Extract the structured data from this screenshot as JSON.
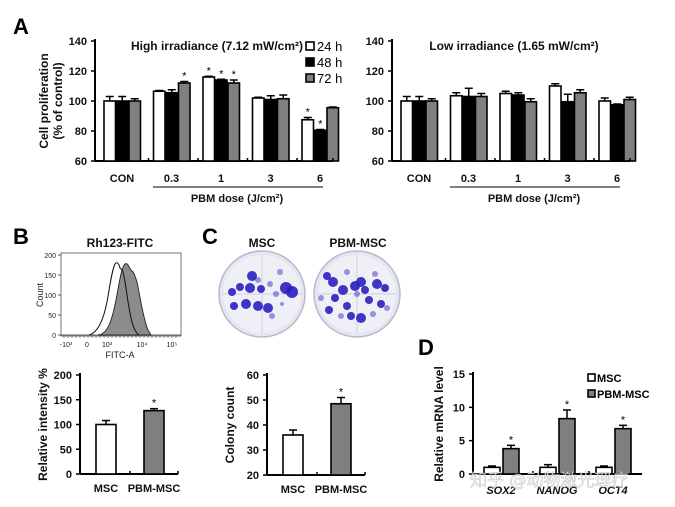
{
  "panels": {
    "A": "A",
    "B": "B",
    "C": "C",
    "D": "D"
  },
  "colors": {
    "h24": "#ffffff",
    "h48": "#000000",
    "h72": "#808080",
    "msc": "#ffffff",
    "pbm": "#7f7f7f",
    "axis": "#000000"
  },
  "watermark": "知乎 @动物激光理疗",
  "chart_data": [
    {
      "id": "A-high",
      "type": "bar",
      "title": "High irradiance (7.12 mW/cm²)",
      "ylabel": "Cell proliferation (% of control)",
      "xlabel": "PBM dose (J/cm²)",
      "ylim": [
        60,
        140
      ],
      "yticks": [
        60,
        80,
        100,
        120,
        140
      ],
      "categories": [
        "CON",
        "0.3",
        "1",
        "3",
        "6"
      ],
      "legend": [
        "24 h",
        "48 h",
        "72 h"
      ],
      "legend_position": "top-right",
      "series": [
        {
          "name": "24 h",
          "values": [
            100,
            106.5,
            116,
            102,
            87.5
          ],
          "errors": [
            3,
            0.5,
            0.5,
            0.5,
            1.5
          ],
          "sig": [
            false,
            false,
            true,
            false,
            true
          ]
        },
        {
          "name": "48 h",
          "values": [
            100,
            105.5,
            114,
            101,
            80.5
          ],
          "errors": [
            3,
            2,
            0.5,
            2.5,
            0.5
          ],
          "sig": [
            false,
            false,
            true,
            false,
            true
          ]
        },
        {
          "name": "72 h",
          "values": [
            100,
            112,
            112,
            101.5,
            95.5
          ],
          "errors": [
            1.5,
            1,
            2,
            2.5,
            0.5
          ],
          "sig": [
            false,
            true,
            true,
            false,
            false
          ]
        }
      ]
    },
    {
      "id": "A-low",
      "type": "bar",
      "title": "Low irradiance (1.65 mW/cm²)",
      "ylabel": "",
      "xlabel": "PBM dose (J/cm²)",
      "ylim": [
        60,
        140
      ],
      "yticks": [
        60,
        80,
        100,
        120,
        140
      ],
      "categories": [
        "CON",
        "0.3",
        "1",
        "3",
        "6"
      ],
      "series": [
        {
          "name": "24 h",
          "values": [
            100,
            103.5,
            105,
            110,
            100
          ],
          "errors": [
            3,
            2,
            1.5,
            1.5,
            2
          ],
          "sig": [
            false,
            false,
            false,
            false,
            false
          ]
        },
        {
          "name": "48 h",
          "values": [
            100,
            103,
            104,
            99.5,
            97.5
          ],
          "errors": [
            3,
            5.5,
            1.5,
            5,
            0.5
          ],
          "sig": [
            false,
            false,
            false,
            false,
            false
          ]
        },
        {
          "name": "72 h",
          "values": [
            100,
            103,
            99.5,
            105.5,
            101
          ],
          "errors": [
            1.5,
            2,
            2,
            2,
            1.5
          ],
          "sig": [
            false,
            false,
            false,
            false,
            false
          ]
        }
      ]
    },
    {
      "id": "B-hist",
      "type": "area",
      "title": "Rh123-FITC",
      "xlabel": "FITC-A",
      "ylabel": "Count",
      "xticks": [
        "-10³",
        "0",
        "10³",
        "10⁴",
        "10⁵"
      ],
      "yticks": [
        0,
        50,
        100,
        150,
        200
      ],
      "ylim": [
        0,
        210
      ],
      "series": [
        {
          "name": "MSC",
          "fill": "none",
          "peak_x": "~10^3.1",
          "peak_count": 190
        },
        {
          "name": "PBM-MSC",
          "fill": "gray",
          "peak_x": "~10^3.4",
          "peak_count": 190
        }
      ]
    },
    {
      "id": "B-bar",
      "type": "bar",
      "ylabel": "Relative intensity %",
      "ylim": [
        0,
        200
      ],
      "yticks": [
        0,
        50,
        100,
        150,
        200
      ],
      "categories": [
        "MSC",
        "PBM-MSC"
      ],
      "values": [
        100,
        128
      ],
      "errors": [
        8,
        4
      ],
      "sig": [
        false,
        true
      ]
    },
    {
      "id": "C-images",
      "type": "table",
      "labels": [
        "MSC",
        "PBM-MSC"
      ]
    },
    {
      "id": "C-bar",
      "type": "bar",
      "ylabel": "Colony count",
      "ylim": [
        20,
        60
      ],
      "yticks": [
        20,
        30,
        40,
        50,
        60
      ],
      "categories": [
        "MSC",
        "PBM-MSC"
      ],
      "values": [
        36,
        48.5
      ],
      "errors": [
        2,
        2.5
      ],
      "sig": [
        false,
        true
      ]
    },
    {
      "id": "D-bar",
      "type": "bar",
      "ylabel": "Relative mRNA level",
      "ylim": [
        0,
        15
      ],
      "yticks": [
        0,
        5,
        10,
        15
      ],
      "categories": [
        "SOX2",
        "NANOG",
        "OCT4"
      ],
      "legend": [
        "MSC",
        "PBM-MSC"
      ],
      "legend_position": "top-right",
      "series": [
        {
          "name": "MSC",
          "values": [
            1,
            1,
            1
          ],
          "errors": [
            0.2,
            0.4,
            0.2
          ],
          "sig": [
            false,
            false,
            false
          ]
        },
        {
          "name": "PBM-MSC",
          "values": [
            3.8,
            8.3,
            6.8
          ],
          "errors": [
            0.5,
            1.3,
            0.5
          ],
          "sig": [
            true,
            true,
            true
          ]
        }
      ]
    }
  ]
}
